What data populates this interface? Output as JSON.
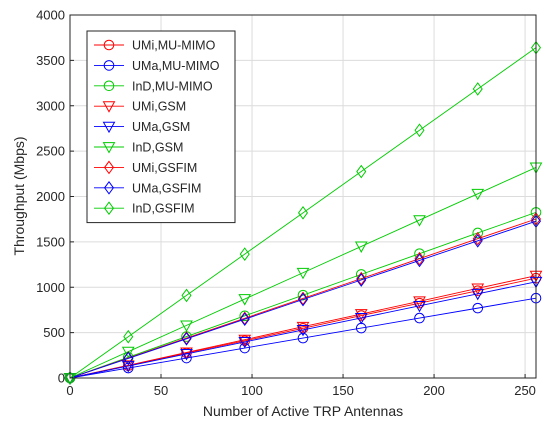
{
  "chart_data": {
    "type": "line",
    "title": "",
    "xlabel": "Number of Active TRP Antennas",
    "ylabel": "Throughput (Mbps)",
    "xlim": [
      0,
      256
    ],
    "ylim": [
      0,
      4000
    ],
    "xticks": [
      0,
      50,
      100,
      150,
      200,
      250
    ],
    "yticks": [
      0,
      500,
      1000,
      1500,
      2000,
      2500,
      3000,
      3500,
      4000
    ],
    "grid": true,
    "legend_position": "top-left",
    "x": [
      0,
      32,
      64,
      96,
      128,
      160,
      192,
      224,
      256
    ],
    "series": [
      {
        "name": "UMi,MU-MIMO",
        "color": "#ff0000",
        "marker": "circle",
        "values": [
          0,
          135,
          275,
          410,
          548,
          688,
          825,
          962,
          1100
        ]
      },
      {
        "name": "UMa,MU-MIMO",
        "color": "#0000ff",
        "marker": "circle",
        "values": [
          0,
          110,
          220,
          330,
          440,
          550,
          660,
          770,
          880
        ]
      },
      {
        "name": "InD,MU-MIMO",
        "color": "#00cc00",
        "marker": "circle",
        "values": [
          0,
          228,
          457,
          685,
          913,
          1142,
          1370,
          1598,
          1825
        ]
      },
      {
        "name": "UMi,GSM",
        "color": "#ff0000",
        "marker": "triangle-down",
        "values": [
          0,
          140,
          282,
          422,
          565,
          705,
          845,
          988,
          1128
        ]
      },
      {
        "name": "UMa,GSM",
        "color": "#0000ff",
        "marker": "triangle-down",
        "values": [
          0,
          132,
          265,
          398,
          530,
          662,
          795,
          928,
          1060
        ]
      },
      {
        "name": "InD,GSM",
        "color": "#00cc00",
        "marker": "triangle-down",
        "values": [
          0,
          290,
          580,
          870,
          1160,
          1450,
          1740,
          2030,
          2320
        ]
      },
      {
        "name": "UMi,GSFIM",
        "color": "#ff0000",
        "marker": "diamond",
        "values": [
          0,
          220,
          440,
          658,
          877,
          1095,
          1315,
          1535,
          1752
        ]
      },
      {
        "name": "UMa,GSFIM",
        "color": "#0000ff",
        "marker": "diamond",
        "values": [
          0,
          216,
          432,
          648,
          865,
          1080,
          1296,
          1512,
          1728
        ]
      },
      {
        "name": "InD,GSFIM",
        "color": "#00cc00",
        "marker": "diamond",
        "values": [
          0,
          455,
          910,
          1365,
          1820,
          2275,
          2730,
          3185,
          3640
        ]
      }
    ]
  }
}
